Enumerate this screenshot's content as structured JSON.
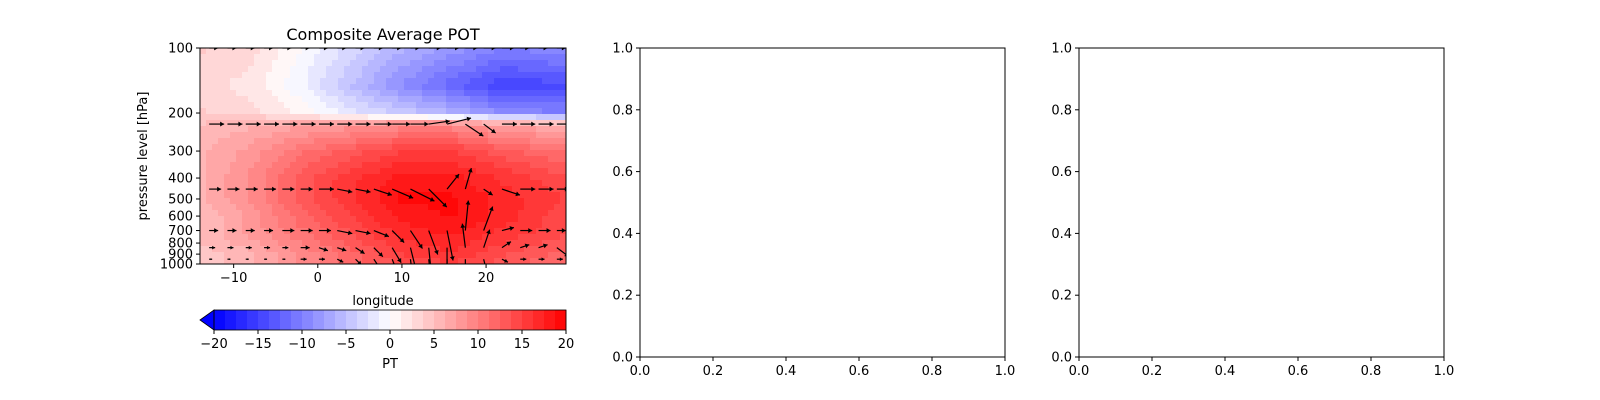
{
  "chart_data": [
    {
      "type": "heatmap",
      "title": "Composite Average POT",
      "xlabel": "longitude",
      "ylabel": "pressure level [hPa]",
      "xlim": [
        -14,
        29.5
      ],
      "ylim": [
        1000,
        100
      ],
      "yscale": "log",
      "xticks": [
        -10,
        0,
        10,
        20
      ],
      "xtick_labels": [
        "−10",
        "0",
        "10",
        "20"
      ],
      "yticks": [
        100,
        200,
        300,
        400,
        500,
        600,
        700,
        800,
        900,
        1000
      ],
      "ytick_labels": [
        "100",
        "200",
        "300",
        "400",
        "500",
        "600",
        "700",
        "800",
        "900",
        "1000"
      ],
      "field_description_levels": [
        1000,
        900,
        800,
        700,
        600,
        500,
        400,
        300,
        225,
        200,
        150,
        100
      ],
      "field_x": [
        -14,
        -8,
        -2,
        4,
        10,
        16,
        22,
        29.5
      ],
      "field_values": [
        [
          4,
          6,
          9,
          12,
          14,
          15,
          13,
          11
        ],
        [
          4,
          6,
          9,
          12,
          15,
          16,
          14,
          12
        ],
        [
          5,
          7,
          10,
          13,
          16,
          17,
          15,
          13
        ],
        [
          5,
          8,
          11,
          14,
          17,
          18,
          16,
          14
        ],
        [
          5,
          8,
          12,
          15,
          18,
          19,
          17,
          14
        ],
        [
          6,
          9,
          13,
          16,
          19,
          19,
          17,
          15
        ],
        [
          6,
          9,
          13,
          16,
          18,
          18,
          16,
          14
        ],
        [
          6,
          8,
          11,
          13,
          15,
          15,
          13,
          11
        ],
        [
          5,
          6,
          7,
          8,
          9,
          9,
          7,
          6
        ],
        [
          4,
          3,
          1,
          -2,
          -4,
          -6,
          -9,
          -10
        ],
        [
          3,
          2,
          -1,
          -5,
          -9,
          -12,
          -15,
          -14
        ],
        [
          4,
          3,
          0,
          -3,
          -6,
          -8,
          -10,
          -9
        ]
      ],
      "quiver_rows": [
        {
          "level": 100,
          "u": [
            3,
            3,
            3,
            3,
            3,
            3,
            3,
            3,
            3,
            3,
            3,
            3,
            4,
            4,
            4,
            4,
            4,
            3,
            3,
            3
          ],
          "v": [
            0,
            0,
            0,
            0,
            0,
            0,
            0,
            0,
            0,
            0,
            0,
            0,
            0,
            0,
            0,
            0,
            0,
            0,
            0,
            0
          ]
        },
        {
          "level": 225,
          "u": [
            5,
            5,
            5,
            5,
            5,
            5,
            5,
            5,
            5,
            6,
            6,
            6,
            7,
            8,
            6,
            4,
            5,
            5,
            5,
            5
          ],
          "v": [
            0,
            0,
            0,
            0,
            0,
            0,
            0,
            0,
            0,
            0,
            0,
            0,
            1,
            2,
            -4,
            -3,
            0,
            0,
            0,
            0
          ]
        },
        {
          "level": 450,
          "u": [
            4,
            4,
            4,
            4,
            4,
            4,
            5,
            5,
            5,
            6,
            7,
            8,
            6,
            4,
            2,
            3,
            6,
            5,
            5,
            4
          ],
          "v": [
            0,
            0,
            0,
            0,
            0,
            0,
            0,
            -1,
            -1,
            -2,
            -3,
            -4,
            -6,
            5,
            7,
            -2,
            -2,
            0,
            0,
            0
          ]
        },
        {
          "level": 700,
          "u": [
            3,
            3,
            3,
            3,
            4,
            4,
            4,
            5,
            5,
            5,
            4,
            4,
            3,
            2,
            1,
            3,
            4,
            4,
            4,
            3
          ],
          "v": [
            0,
            0,
            0,
            0,
            0,
            0,
            0,
            -1,
            -1,
            -2,
            -4,
            -6,
            -8,
            -10,
            10,
            8,
            1,
            0,
            0,
            0
          ]
        },
        {
          "level": 840,
          "u": [
            2,
            2,
            2,
            2,
            2,
            3,
            3,
            3,
            3,
            3,
            3,
            2,
            1,
            0,
            -1,
            2,
            3,
            3,
            3,
            4
          ],
          "v": [
            0,
            0,
            0,
            0,
            0,
            0,
            -1,
            -1,
            -2,
            -3,
            -5,
            -8,
            -10,
            -12,
            8,
            6,
            2,
            1,
            1,
            -3
          ]
        },
        {
          "level": 950,
          "u": [
            1,
            1,
            1,
            1,
            1,
            2,
            2,
            2,
            2,
            2,
            2,
            1,
            1,
            0,
            0,
            1,
            2,
            2,
            2,
            2
          ],
          "v": [
            0,
            0,
            0,
            0,
            0,
            0,
            0,
            -1,
            -2,
            -3,
            -5,
            -8,
            -10,
            -12,
            -8,
            -4,
            -1,
            0,
            0,
            0
          ]
        }
      ],
      "colorbar": {
        "label": "PT",
        "vmin": -20,
        "vmax": 20,
        "step": 1.25,
        "extend": "min",
        "ticks": [
          -20,
          -15,
          -10,
          -5,
          0,
          5,
          10,
          15,
          20
        ],
        "tick_labels": [
          "−20",
          "−15",
          "−10",
          "−5",
          "0",
          "5",
          "10",
          "15",
          "20"
        ],
        "cmap": "bwr"
      }
    },
    {
      "type": "line",
      "title": "",
      "xlim": [
        0,
        1
      ],
      "ylim": [
        0,
        1
      ],
      "xticks": [
        0,
        0.2,
        0.4,
        0.6,
        0.8,
        1
      ],
      "xtick_labels": [
        "0.0",
        "0.2",
        "0.4",
        "0.6",
        "0.8",
        "1.0"
      ],
      "yticks": [
        0,
        0.2,
        0.4,
        0.6,
        0.8,
        1
      ],
      "ytick_labels": [
        "0.0",
        "0.2",
        "0.4",
        "0.6",
        "0.8",
        "1.0"
      ],
      "series": []
    },
    {
      "type": "line",
      "title": "",
      "xlim": [
        0,
        1
      ],
      "ylim": [
        0,
        1
      ],
      "xticks": [
        0,
        0.2,
        0.4,
        0.6,
        0.8,
        1
      ],
      "xtick_labels": [
        "0.0",
        "0.2",
        "0.4",
        "0.6",
        "0.8",
        "1.0"
      ],
      "yticks": [
        0,
        0.2,
        0.4,
        0.6,
        0.8,
        1
      ],
      "ytick_labels": [
        "0.0",
        "0.2",
        "0.4",
        "0.6",
        "0.8",
        "1.0"
      ],
      "series": []
    }
  ]
}
